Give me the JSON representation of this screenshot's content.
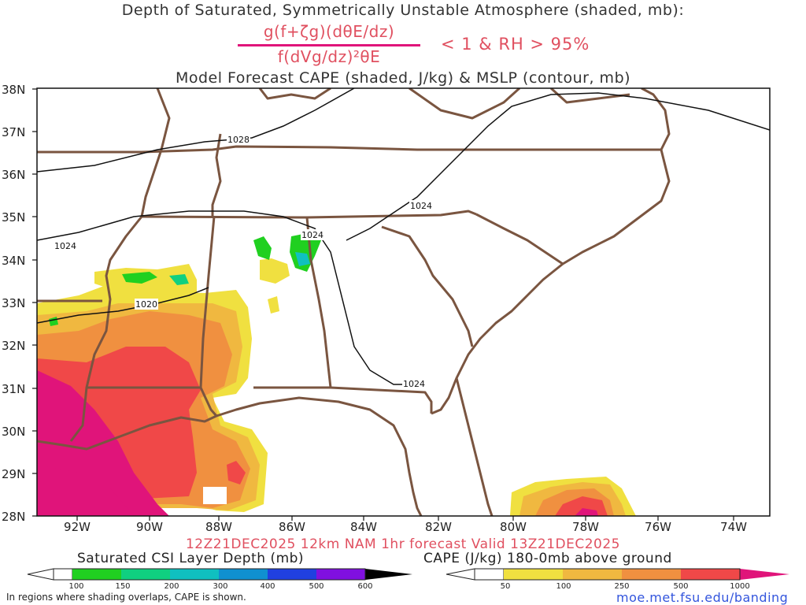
{
  "title": "Depth of Saturated, Symmetrically Unstable Atmosphere (shaded, mb):",
  "formula": {
    "numerator": "g(f+ζg)(dθE/dz)",
    "denominator": "f(dVg/dz)²θE",
    "condition": "< 1 & RH > 95%"
  },
  "subtitle": "Model Forecast CAPE (shaded, J/kg) & MSLP (contour, mb)",
  "map": {
    "lat_labels": [
      "38N",
      "37N",
      "36N",
      "35N",
      "34N",
      "33N",
      "32N",
      "31N",
      "30N",
      "29N",
      "28N"
    ],
    "lon_labels": [
      "92W",
      "90W",
      "88W",
      "86W",
      "84W",
      "82W",
      "80W",
      "78W",
      "76W",
      "74W"
    ],
    "isobar_labels": [
      "1028",
      "1024",
      "1024",
      "1024",
      "1020",
      "1024"
    ]
  },
  "valid_text": "12Z21DEC2025 12km NAM 1hr forecast Valid 13Z21DEC2025",
  "csi_colorbar": {
    "label": "Saturated CSI Layer Depth (mb)",
    "ticks": [
      "100",
      "150",
      "200",
      "300",
      "400",
      "500",
      "600"
    ],
    "colors": [
      "#20d020",
      "#10d080",
      "#10c0c0",
      "#1090d0",
      "#2040e0",
      "#4020e0",
      "#8010e0",
      "#000000"
    ]
  },
  "cape_colorbar": {
    "label": "CAPE (J/kg) 180-0mb above ground",
    "ticks": [
      "50",
      "100",
      "250",
      "500",
      "1000"
    ],
    "colors": [
      "#f0e040",
      "#f0b840",
      "#f09040",
      "#f04848",
      "#e0147a"
    ]
  },
  "note": "In regions where shading overlaps, CAPE is shown.",
  "site": "moe.met.fsu.edu/banding"
}
